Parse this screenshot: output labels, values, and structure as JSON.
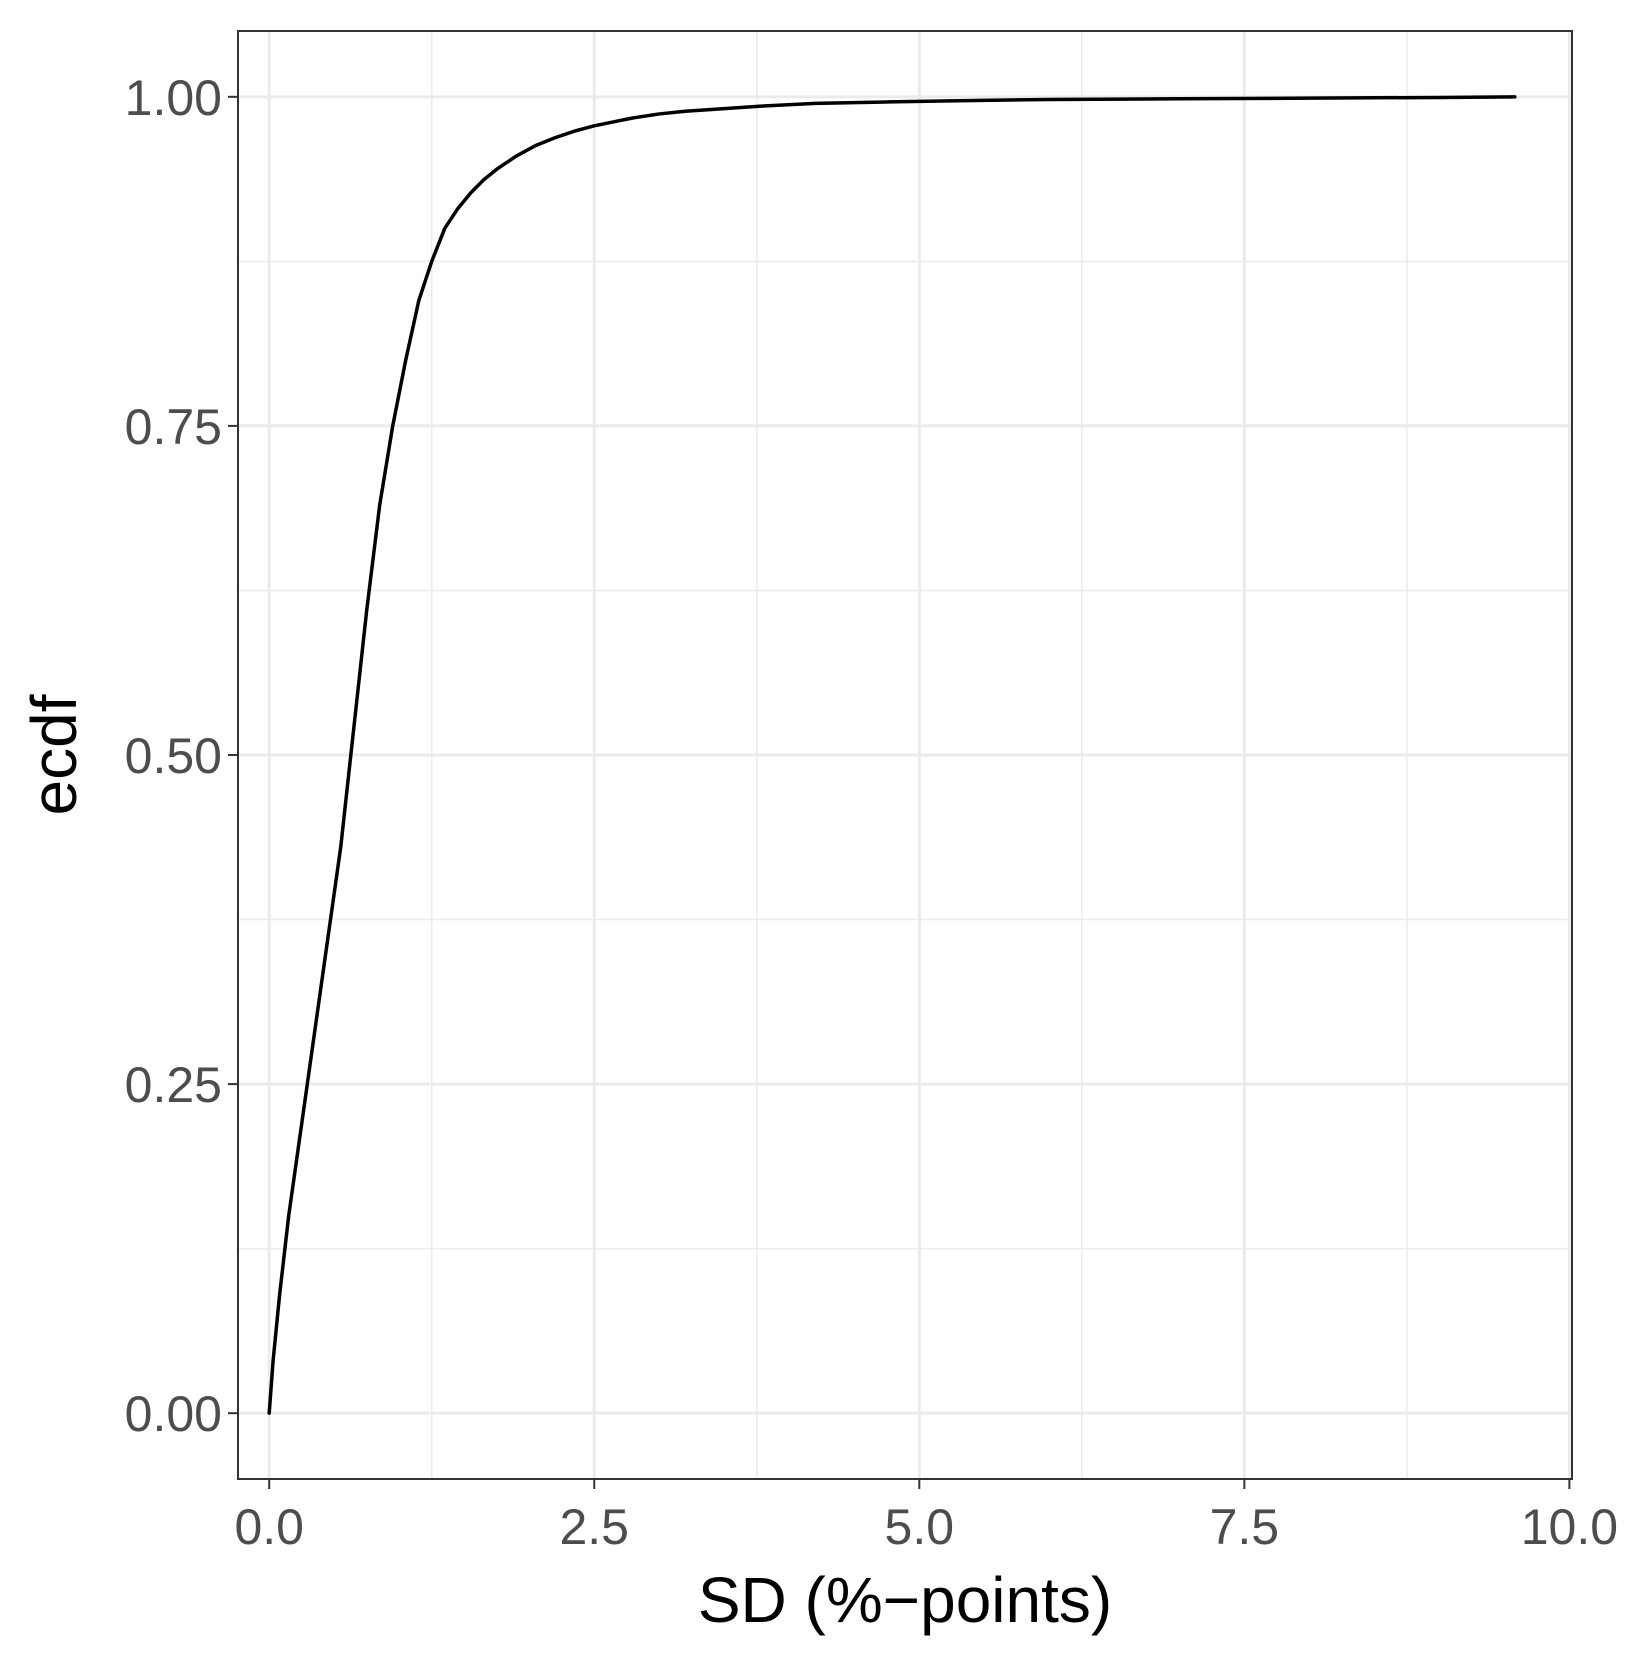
{
  "chart_data": {
    "type": "line",
    "xlabel": "SD (%−points)",
    "ylabel": "ecdf",
    "xlim": [
      -0.24,
      10.02
    ],
    "ylim": [
      -0.05,
      1.05
    ],
    "x_ticks": [
      0.0,
      2.5,
      5.0,
      7.5,
      10.0
    ],
    "x_tick_labels": [
      "0.0",
      "2.5",
      "5.0",
      "7.5",
      "10.0"
    ],
    "y_ticks": [
      0.0,
      0.25,
      0.5,
      0.75,
      1.0
    ],
    "y_tick_labels": [
      "0.00",
      "0.25",
      "0.50",
      "0.75",
      "1.00"
    ],
    "x_minor_ticks": [
      1.25,
      3.75,
      6.25,
      8.75
    ],
    "y_minor_ticks": [
      0.125,
      0.375,
      0.625,
      0.875
    ],
    "grid": true,
    "legend": "none",
    "colors": {
      "line": "#000000",
      "grid": "#ebebeb",
      "panel_border": "#333333",
      "tick_label": "#4d4d4d"
    },
    "series": [
      {
        "x": [
          0.0,
          0.03,
          0.08,
          0.15,
          0.25,
          0.35,
          0.45,
          0.55,
          0.65,
          0.75,
          0.85,
          0.95,
          1.05,
          1.15,
          1.25,
          1.35,
          1.45,
          1.55,
          1.65,
          1.75,
          1.9,
          2.05,
          2.2,
          2.35,
          2.5,
          2.65,
          2.8,
          3.0,
          3.2,
          3.5,
          3.8,
          4.2,
          4.7,
          5.3,
          6.0,
          7.0,
          8.0,
          9.0,
          9.58
        ],
        "y": [
          0.0,
          0.04,
          0.09,
          0.15,
          0.22,
          0.29,
          0.36,
          0.43,
          0.52,
          0.61,
          0.69,
          0.75,
          0.8,
          0.845,
          0.875,
          0.9,
          0.915,
          0.927,
          0.937,
          0.945,
          0.955,
          0.963,
          0.969,
          0.974,
          0.978,
          0.981,
          0.984,
          0.987,
          0.989,
          0.991,
          0.993,
          0.995,
          0.996,
          0.997,
          0.998,
          0.9985,
          0.999,
          0.9995,
          1.0
        ]
      }
    ]
  }
}
